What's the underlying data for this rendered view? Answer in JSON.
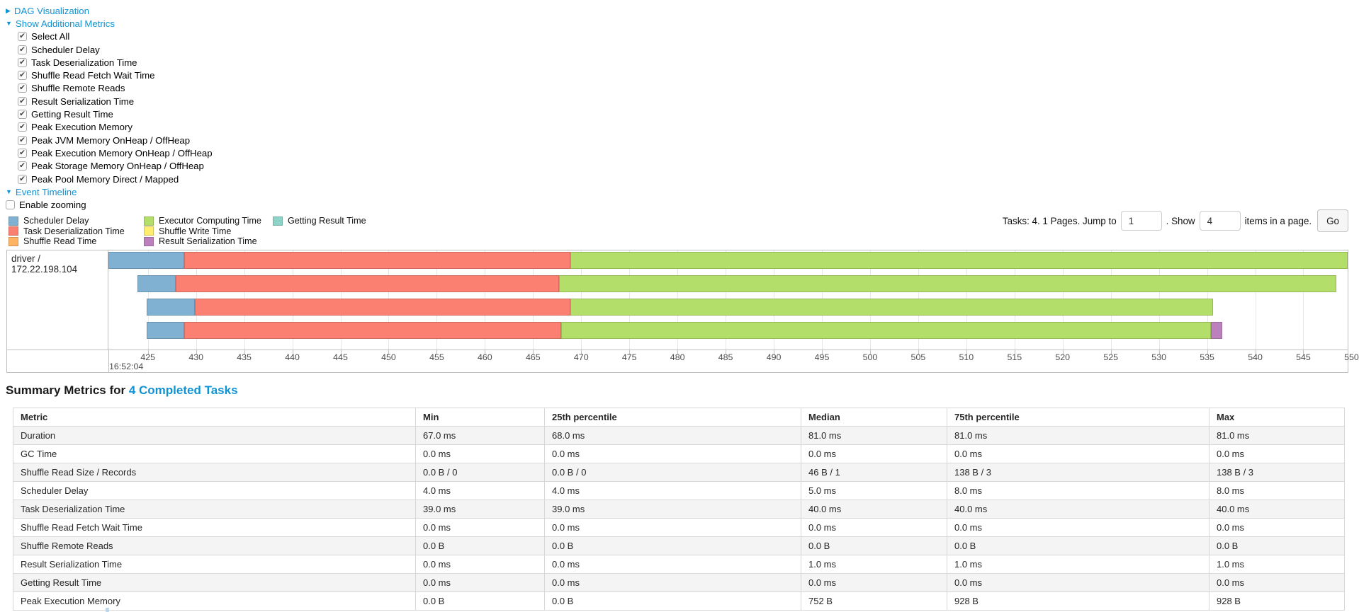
{
  "colors": {
    "link": "#0f93d4",
    "segments": {
      "scheduler-delay": {
        "label": "Scheduler Delay",
        "fill": "#80B1D3",
        "stroke": "#6B94B0"
      },
      "task-deserialization": {
        "label": "Task Deserialization Time",
        "fill": "#FB8072",
        "stroke": "#D26B5F"
      },
      "shuffle-read": {
        "label": "Shuffle Read Time",
        "fill": "#FDB462",
        "stroke": "#D39551"
      },
      "executor-computing": {
        "label": "Executor Computing Time",
        "fill": "#B3DE69",
        "stroke": "#95B957"
      },
      "shuffle-write": {
        "label": "Shuffle Write Time",
        "fill": "#FFED6F",
        "stroke": "#D3C55C"
      },
      "result-serialization": {
        "label": "Result Serialization Time",
        "fill": "#BC80BD",
        "stroke": "#9E6B9E"
      },
      "getting-result": {
        "label": "Getting Result Time",
        "fill": "#8DD3C7",
        "stroke": "#76B0A6"
      }
    }
  },
  "toggles": {
    "dag": {
      "label": "DAG Visualization",
      "state": "collapsed",
      "arrow": "▶"
    },
    "metrics": {
      "label": "Show Additional Metrics",
      "state": "expanded",
      "arrow": "▼"
    },
    "event_timeline": {
      "label": "Event Timeline",
      "state": "expanded",
      "arrow": "▼"
    }
  },
  "metrics": {
    "items": [
      {
        "label": "Select All",
        "checked": true
      },
      {
        "label": "Scheduler Delay",
        "checked": true
      },
      {
        "label": "Task Deserialization Time",
        "checked": true
      },
      {
        "label": "Shuffle Read Fetch Wait Time",
        "checked": true
      },
      {
        "label": "Shuffle Remote Reads",
        "checked": true
      },
      {
        "label": "Result Serialization Time",
        "checked": true
      },
      {
        "label": "Getting Result Time",
        "checked": true
      },
      {
        "label": "Peak Execution Memory",
        "checked": true
      },
      {
        "label": "Peak JVM Memory OnHeap / OffHeap",
        "checked": true
      },
      {
        "label": "Peak Execution Memory OnHeap / OffHeap",
        "checked": true
      },
      {
        "label": "Peak Storage Memory OnHeap / OffHeap",
        "checked": true
      },
      {
        "label": "Peak Pool Memory Direct / Mapped",
        "checked": true
      }
    ]
  },
  "enable_zooming": {
    "label": "Enable zooming",
    "checked": false
  },
  "legend": {
    "columns": [
      [
        "scheduler-delay",
        "task-deserialization",
        "shuffle-read"
      ],
      [
        "executor-computing",
        "shuffle-write",
        "result-serialization"
      ],
      [
        "getting-result"
      ]
    ]
  },
  "pagination": {
    "tasks_text": "Tasks: 4. 1 Pages. Jump to",
    "jump_value": "1",
    "show_text": ". Show",
    "show_value": "4",
    "items_text": "items in a page.",
    "go_label": "Go"
  },
  "chart_data": {
    "type": "timeline",
    "title": "Event Timeline",
    "group_label": "driver / 172.22.198.104",
    "axis": {
      "visible_min": 420.9,
      "visible_max": 549.6,
      "tick_step": 5,
      "ticks": [
        425,
        430,
        435,
        440,
        445,
        450,
        455,
        460,
        465,
        470,
        475,
        480,
        485,
        490,
        495,
        500,
        505,
        510,
        515,
        520,
        525,
        530,
        535,
        540,
        545,
        550
      ],
      "major_label": "16:52:04"
    },
    "tasks": [
      {
        "segments": [
          {
            "type": "scheduler-delay",
            "start": 420.9,
            "end": 428.8
          },
          {
            "type": "task-deserialization",
            "start": 428.8,
            "end": 468.9
          },
          {
            "type": "executor-computing",
            "start": 468.9,
            "end": 549.7
          }
        ]
      },
      {
        "segments": [
          {
            "type": "scheduler-delay",
            "start": 423.9,
            "end": 427.9
          },
          {
            "type": "task-deserialization",
            "start": 427.9,
            "end": 467.7
          },
          {
            "type": "executor-computing",
            "start": 467.7,
            "end": 548.4
          }
        ]
      },
      {
        "segments": [
          {
            "type": "scheduler-delay",
            "start": 424.9,
            "end": 429.9
          },
          {
            "type": "task-deserialization",
            "start": 429.9,
            "end": 468.9
          },
          {
            "type": "executor-computing",
            "start": 468.9,
            "end": 535.6
          }
        ]
      },
      {
        "segments": [
          {
            "type": "scheduler-delay",
            "start": 424.9,
            "end": 428.8
          },
          {
            "type": "task-deserialization",
            "start": 428.8,
            "end": 467.9
          },
          {
            "type": "executor-computing",
            "start": 467.9,
            "end": 535.4
          },
          {
            "type": "result-serialization",
            "start": 535.4,
            "end": 536.6
          }
        ]
      }
    ]
  },
  "summary": {
    "heading_prefix": "Summary Metrics for ",
    "heading_link": "4 Completed Tasks",
    "table": {
      "headers": [
        "Metric",
        "Min",
        "25th percentile",
        "Median",
        "75th percentile",
        "Max"
      ],
      "rows": [
        {
          "metric": "Duration",
          "values": [
            "67.0 ms",
            "68.0 ms",
            "81.0 ms",
            "81.0 ms",
            "81.0 ms"
          ]
        },
        {
          "metric": "GC Time",
          "values": [
            "0.0 ms",
            "0.0 ms",
            "0.0 ms",
            "0.0 ms",
            "0.0 ms"
          ]
        },
        {
          "metric": "Shuffle Read Size / Records",
          "values": [
            "0.0 B / 0",
            "0.0 B / 0",
            "46 B / 1",
            "138 B / 3",
            "138 B / 3"
          ]
        },
        {
          "metric": "Scheduler Delay",
          "values": [
            "4.0 ms",
            "4.0 ms",
            "5.0 ms",
            "8.0 ms",
            "8.0 ms"
          ]
        },
        {
          "metric": "Task Deserialization Time",
          "values": [
            "39.0 ms",
            "39.0 ms",
            "40.0 ms",
            "40.0 ms",
            "40.0 ms"
          ]
        },
        {
          "metric": "Shuffle Read Fetch Wait Time",
          "values": [
            "0.0 ms",
            "0.0 ms",
            "0.0 ms",
            "0.0 ms",
            "0.0 ms"
          ]
        },
        {
          "metric": "Shuffle Remote Reads",
          "values": [
            "0.0 B",
            "0.0 B",
            "0.0 B",
            "0.0 B",
            "0.0 B"
          ]
        },
        {
          "metric": "Result Serialization Time",
          "values": [
            "0.0 ms",
            "0.0 ms",
            "1.0 ms",
            "1.0 ms",
            "1.0 ms"
          ]
        },
        {
          "metric": "Getting Result Time",
          "values": [
            "0.0 ms",
            "0.0 ms",
            "0.0 ms",
            "0.0 ms",
            "0.0 ms"
          ]
        },
        {
          "metric": "Peak Execution Memory",
          "values": [
            "0.0 B",
            "0.0 B",
            "752 B",
            "928 B",
            "928 B"
          ]
        }
      ]
    }
  }
}
